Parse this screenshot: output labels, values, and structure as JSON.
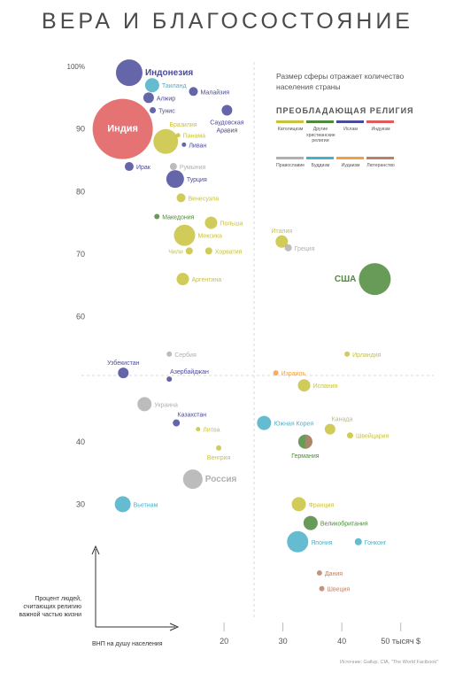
{
  "title": "ВЕРА И БЛАГОСОСТОЯНИЕ",
  "legend": {
    "note": "Размер сферы отражает количество населения страны",
    "heading": "ПРЕОБЛАДАЮЩАЯ РЕЛИГИЯ",
    "items": [
      {
        "label": "Католицизм",
        "color": "#c9c23c"
      },
      {
        "label": "Другие христианские религии",
        "color": "#4e8a3a"
      },
      {
        "label": "Ислам",
        "color": "#4a4a9a"
      },
      {
        "label": "Индуизм",
        "color": "#e05a5a"
      },
      {
        "label": "Православие",
        "color": "#b0b0b0"
      },
      {
        "label": "Буддизм",
        "color": "#4ab0c8"
      },
      {
        "label": "Иудаизм",
        "color": "#f0a040"
      },
      {
        "label": "Лютеранство",
        "color": "#b8826a"
      }
    ]
  },
  "axes": {
    "ylabel": "Процент людей, считающих религию важной частью жизни",
    "xlabel": "ВНП на душу населения",
    "x_unit_suffix": "тысяч $"
  },
  "source": "Источник: Gallup, CIA, \"The World Factbook\"",
  "chart_data": {
    "type": "scatter",
    "title": "ВЕРА И БЛАГОСОСТОЯНИЕ",
    "xlabel": "ВНП на душу населения",
    "ylabel": "Процент людей, считающих религию важной частью жизни",
    "xlim": [
      0,
      52
    ],
    "ylim": [
      20,
      101
    ],
    "x_ticks": [
      {
        "value": 20,
        "label": "20"
      },
      {
        "value": 30,
        "label": "30"
      },
      {
        "value": 40,
        "label": "40"
      },
      {
        "value": 50,
        "label": "50 тысяч $"
      }
    ],
    "y_ticks": [
      {
        "value": 100,
        "label": "100%"
      },
      {
        "value": 90,
        "label": "90"
      },
      {
        "value": 80,
        "label": "80"
      },
      {
        "value": 70,
        "label": "70"
      },
      {
        "value": 60,
        "label": "60"
      },
      {
        "value": 40,
        "label": "40"
      },
      {
        "value": 30,
        "label": "30"
      }
    ],
    "points": [
      {
        "name": "Индонезия",
        "x": 3.9,
        "y": 99,
        "r": 15,
        "religion": "Ислам",
        "color": "#4a4a9a",
        "side": "right",
        "bold": true
      },
      {
        "name": "Таиланд",
        "x": 7.8,
        "y": 97,
        "r": 8,
        "religion": "Буддизм",
        "color": "#4ab0c8",
        "side": "right"
      },
      {
        "name": "Малайзия",
        "x": 14.8,
        "y": 96,
        "r": 5,
        "religion": "Ислам",
        "color": "#4a4a9a",
        "side": "right"
      },
      {
        "name": "Алжир",
        "x": 7.2,
        "y": 95,
        "r": 6,
        "religion": "Ислам",
        "color": "#4a4a9a",
        "side": "right"
      },
      {
        "name": "Тунис",
        "x": 7.9,
        "y": 93,
        "r": 3.5,
        "religion": "Ислам",
        "color": "#4a4a9a",
        "side": "right"
      },
      {
        "name": "Саудовская Аравия",
        "x": 20.5,
        "y": 93,
        "r": 6,
        "religion": "Ислам",
        "color": "#4a4a9a",
        "side": "below"
      },
      {
        "name": "Индия",
        "x": 2.8,
        "y": 90,
        "r": 34,
        "religion": "Индуизм",
        "color": "#e05a5a",
        "side": "inside",
        "bold": true
      },
      {
        "name": "Бразилия",
        "x": 10.1,
        "y": 88,
        "r": 14,
        "religion": "Католицизм",
        "color": "#c9c23c",
        "side": "above-right"
      },
      {
        "name": "Панама",
        "x": 12.2,
        "y": 89,
        "r": 2.5,
        "religion": "Католицизм",
        "color": "#c9c23c",
        "side": "right"
      },
      {
        "name": "Ливан",
        "x": 13.2,
        "y": 87.5,
        "r": 2.5,
        "religion": "Ислам",
        "color": "#4a4a9a",
        "side": "right"
      },
      {
        "name": "Ирак",
        "x": 3.9,
        "y": 84,
        "r": 5,
        "religion": "Ислам",
        "color": "#4a4a9a",
        "side": "right"
      },
      {
        "name": "Румыния",
        "x": 11.4,
        "y": 84,
        "r": 4,
        "religion": "Православие",
        "color": "#b0b0b0",
        "side": "right"
      },
      {
        "name": "Турция",
        "x": 11.7,
        "y": 82,
        "r": 10,
        "religion": "Ислам",
        "color": "#4a4a9a",
        "side": "right"
      },
      {
        "name": "Венесуэла",
        "x": 12.7,
        "y": 79,
        "r": 5,
        "religion": "Католицизм",
        "color": "#c9c23c",
        "side": "right"
      },
      {
        "name": "Македония",
        "x": 8.6,
        "y": 76,
        "r": 3,
        "religion": "Другие христианские религии",
        "color": "#4e8a3a",
        "side": "right"
      },
      {
        "name": "Польша",
        "x": 17.8,
        "y": 75,
        "r": 7,
        "religion": "Католицизм",
        "color": "#c9c23c",
        "side": "right"
      },
      {
        "name": "Мексика",
        "x": 13.3,
        "y": 73,
        "r": 12,
        "religion": "Католицизм",
        "color": "#c9c23c",
        "side": "right"
      },
      {
        "name": "Чили",
        "x": 14.1,
        "y": 70.5,
        "r": 4,
        "religion": "Католицизм",
        "color": "#c9c23c",
        "side": "left"
      },
      {
        "name": "Хорватия",
        "x": 17.4,
        "y": 70.5,
        "r": 4,
        "religion": "Католицизм",
        "color": "#c9c23c",
        "side": "right"
      },
      {
        "name": "Италия",
        "x": 29.8,
        "y": 72,
        "r": 7,
        "religion": "Католицизм",
        "color": "#c9c23c",
        "side": "above"
      },
      {
        "name": "Греция",
        "x": 30.9,
        "y": 71,
        "r": 4,
        "religion": "Православие",
        "color": "#b0b0b0",
        "side": "right"
      },
      {
        "name": "США",
        "x": 45.6,
        "y": 66,
        "r": 18,
        "religion": "Другие христианские религии",
        "color": "#4e8a3a",
        "side": "left",
        "bold": true
      },
      {
        "name": "Аргентина",
        "x": 13,
        "y": 66,
        "r": 7,
        "religion": "Католицизм",
        "color": "#c9c23c",
        "side": "right"
      },
      {
        "name": "Сербия",
        "x": 10.7,
        "y": 54,
        "r": 3,
        "religion": "Православие",
        "color": "#b0b0b0",
        "side": "right"
      },
      {
        "name": "Ирландия",
        "x": 40.9,
        "y": 54,
        "r": 3,
        "religion": "Католицизм",
        "color": "#c9c23c",
        "side": "right"
      },
      {
        "name": "Узбекистан",
        "x": 2.9,
        "y": 51,
        "r": 6,
        "religion": "Ислам",
        "color": "#4a4a9a",
        "side": "above"
      },
      {
        "name": "Азербайджан",
        "x": 10.7,
        "y": 50,
        "r": 3,
        "religion": "Ислам",
        "color": "#4a4a9a",
        "side": "above-right"
      },
      {
        "name": "Израиль",
        "x": 28.8,
        "y": 51,
        "r": 3,
        "religion": "Иудаизм",
        "color": "#f0a040",
        "side": "right"
      },
      {
        "name": "Испания",
        "x": 33.6,
        "y": 49,
        "r": 7,
        "religion": "Католицизм",
        "color": "#c9c23c",
        "side": "right"
      },
      {
        "name": "Украина",
        "x": 6.5,
        "y": 46,
        "r": 8,
        "religion": "Православие",
        "color": "#b0b0b0",
        "side": "right"
      },
      {
        "name": "Казахстан",
        "x": 11.9,
        "y": 43,
        "r": 4,
        "religion": "Ислам",
        "color": "#4a4a9a",
        "side": "above-right"
      },
      {
        "name": "Литва",
        "x": 15.6,
        "y": 42,
        "r": 2.5,
        "religion": "Католицизм",
        "color": "#c9c23c",
        "side": "right"
      },
      {
        "name": "Южная Корея",
        "x": 26.8,
        "y": 43,
        "r": 8,
        "religion": "Буддизм",
        "color": "#4ab0c8",
        "side": "right"
      },
      {
        "name": "Канада",
        "x": 38,
        "y": 42,
        "r": 6,
        "religion": "Католицизм",
        "color": "#c9c23c",
        "side": "above-right"
      },
      {
        "name": "Швейцария",
        "x": 41.4,
        "y": 41,
        "r": 3.5,
        "religion": "Католицизм",
        "color": "#c9c23c",
        "side": "right"
      },
      {
        "name": "Германия",
        "x": 33.8,
        "y": 40,
        "r": 8,
        "religion": "Другие христианские религии",
        "color": "#4e8a3a",
        "side": "below",
        "color2": "#b8826a"
      },
      {
        "name": "Венгрия",
        "x": 19.1,
        "y": 39,
        "r": 3,
        "religion": "Католицизм",
        "color": "#c9c23c",
        "side": "below"
      },
      {
        "name": "Россия",
        "x": 14.7,
        "y": 34,
        "r": 11,
        "religion": "Православие",
        "color": "#b0b0b0",
        "side": "right",
        "bold": true
      },
      {
        "name": "Вьетнам",
        "x": 2.8,
        "y": 30,
        "r": 9,
        "religion": "Буддизм",
        "color": "#4ab0c8",
        "side": "right"
      },
      {
        "name": "Франция",
        "x": 32.7,
        "y": 30,
        "r": 8,
        "religion": "Католицизм",
        "color": "#c9c23c",
        "side": "right"
      },
      {
        "name": "Великобритания",
        "x": 34.7,
        "y": 27,
        "r": 8,
        "religion": "Другие христианские религии",
        "color": "#4e8a3a",
        "side": "right"
      },
      {
        "name": "Япония",
        "x": 32.5,
        "y": 24,
        "r": 12,
        "religion": "Буддизм",
        "color": "#4ab0c8",
        "side": "right"
      },
      {
        "name": "Гонконг",
        "x": 42.8,
        "y": 24,
        "r": 4,
        "religion": "Буддизм",
        "color": "#4ab0c8",
        "side": "right"
      },
      {
        "name": "Дания",
        "x": 36.2,
        "y": 19,
        "r": 3,
        "religion": "Лютеранство",
        "color": "#b8826a",
        "side": "right"
      },
      {
        "name": "Швеция",
        "x": 36.6,
        "y": 16.5,
        "r": 3,
        "religion": "Лютеранство",
        "color": "#b8826a",
        "side": "right"
      }
    ]
  }
}
